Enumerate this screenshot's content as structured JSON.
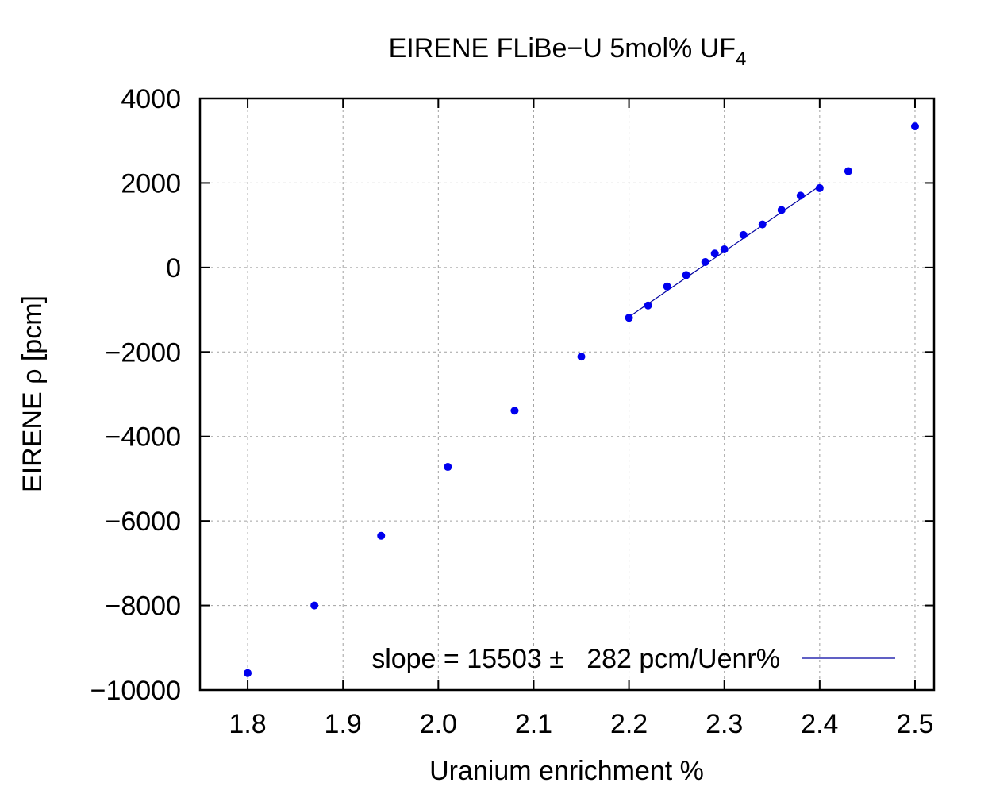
{
  "chart_data": {
    "type": "scatter",
    "title": "EIRENE FLiBe−U 5mol% UF",
    "title_subscript": "4",
    "xlabel": "Uranium enrichment %",
    "ylabel": "EIRENE ρ [pcm]",
    "xlim": [
      1.75,
      2.52
    ],
    "ylim": [
      -10000,
      4000
    ],
    "x_ticks": [
      1.8,
      1.9,
      2.0,
      2.1,
      2.2,
      2.3,
      2.4,
      2.5
    ],
    "x_tick_labels": [
      "1.8",
      "1.9",
      "2.0",
      "2.1",
      "2.2",
      "2.3",
      "2.4",
      "2.5"
    ],
    "y_ticks": [
      4000,
      2000,
      0,
      -2000,
      -4000,
      -6000,
      -8000,
      -10000
    ],
    "y_tick_labels": [
      "4000",
      "2000",
      "0",
      "−2000",
      "−4000",
      "−6000",
      "−8000",
      "−10000"
    ],
    "grid": true,
    "point_color": "#0000ee",
    "line_color": "#0000a0",
    "series": [
      {
        "x": [
          1.8,
          1.87,
          1.94,
          2.01,
          2.08,
          2.15,
          2.2,
          2.22,
          2.24,
          2.26,
          2.28,
          2.29,
          2.3,
          2.32,
          2.34,
          2.36,
          2.38,
          2.4,
          2.43,
          2.5
        ],
        "y": [
          -9600,
          -8000,
          -6350,
          -4720,
          -3390,
          -2110,
          -1190,
          -900,
          -450,
          -180,
          130,
          330,
          430,
          770,
          1020,
          1360,
          1700,
          1880,
          2280,
          3340
        ]
      }
    ],
    "fit": {
      "x": [
        2.2,
        2.4
      ],
      "y": [
        -1170,
        1930
      ],
      "legend_label": "slope = 15503 ±   282 pcm/Uenr%"
    },
    "legend_position": "bottom-right"
  }
}
